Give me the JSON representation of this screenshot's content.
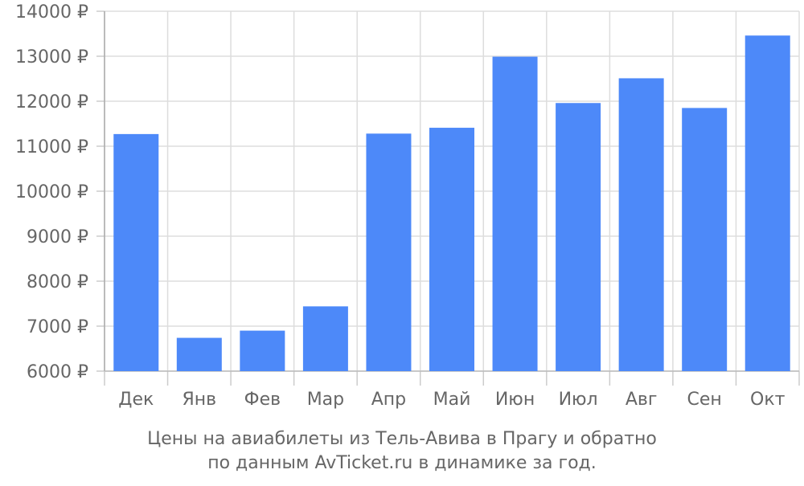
{
  "chart_data": {
    "type": "bar",
    "categories": [
      "Дек",
      "Янв",
      "Фев",
      "Мар",
      "Апр",
      "Май",
      "Июн",
      "Июл",
      "Авг",
      "Сен",
      "Окт"
    ],
    "values": [
      11270,
      6740,
      6900,
      7440,
      11280,
      11410,
      12990,
      11960,
      12510,
      11850,
      13460
    ],
    "ylim": [
      6000,
      14000
    ],
    "y_ticks": [
      6000,
      7000,
      8000,
      9000,
      10000,
      11000,
      12000,
      13000,
      14000
    ],
    "y_tick_labels": [
      "6000 ₽",
      "7000 ₽",
      "8000 ₽",
      "9000 ₽",
      "10000 ₽",
      "11000 ₽",
      "12000 ₽",
      "13000 ₽",
      "14000 ₽"
    ],
    "grid": true,
    "bar_color": "#4d89f9",
    "caption_line1": "Цены на авиабилеты из Тель-Авива в Прагу и обратно",
    "caption_line2": "по данным AvTicket.ru в динамике за год."
  }
}
